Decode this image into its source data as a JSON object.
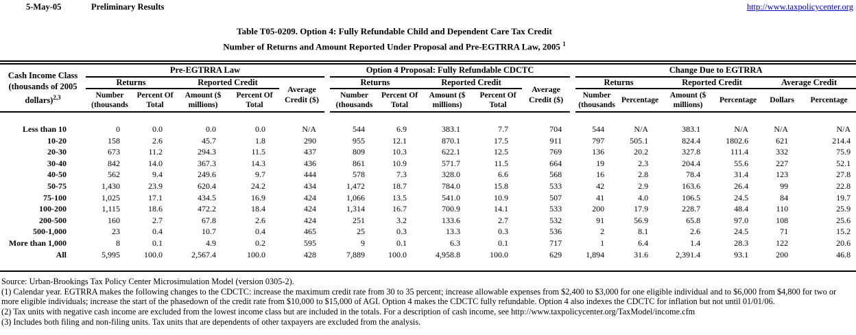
{
  "header": {
    "date": "5-May-05",
    "status": "Preliminary Results",
    "url": "http://www.taxpolicycenter.org"
  },
  "title": {
    "line1": "Table T05-0209. Option 4: Fully Refundable Child and Dependent Care Tax Credit",
    "line2": "Number of Returns and Amount Reported Under Proposal and Pre-EGTRRA Law, 2005 ",
    "superscript": "1"
  },
  "table": {
    "corner": {
      "line1": "Cash Income Class",
      "line2": "(thousands of 2005",
      "line3": "dollars)",
      "superscript": "2,3"
    },
    "groups": [
      "Pre-EGTRRA Law",
      "Option 4 Proposal: Fully Refundable CDCTC",
      "Change Due to EGTRRA"
    ],
    "sub": {
      "returns": "Returns",
      "reported": "Reported Credit",
      "avg_dollar": "Average\nCredit ($)",
      "avg": "Average Credit"
    },
    "cols": {
      "number": "Number\n(thousands",
      "pct_of_total": "Percent Of\nTotal",
      "amount": "Amount ($\nmillions)",
      "percentage": "Percentage",
      "dollars": "Dollars"
    },
    "rows": [
      {
        "label": "Less than 10",
        "values": [
          "0",
          "0.0",
          "0.0",
          "0.0",
          "N/A",
          "544",
          "6.9",
          "383.1",
          "7.7",
          "704",
          "544",
          "N/A",
          "383.1",
          "N/A",
          "N/A",
          "N/A"
        ]
      },
      {
        "label": "10-20",
        "values": [
          "158",
          "2.6",
          "45.7",
          "1.8",
          "290",
          "955",
          "12.1",
          "870.1",
          "17.5",
          "911",
          "797",
          "505.1",
          "824.4",
          "1802.6",
          "621",
          "214.4"
        ]
      },
      {
        "label": "20-30",
        "values": [
          "673",
          "11.2",
          "294.3",
          "11.5",
          "437",
          "809",
          "10.3",
          "622.1",
          "12.5",
          "769",
          "136",
          "20.2",
          "327.8",
          "111.4",
          "332",
          "75.9"
        ]
      },
      {
        "label": "30-40",
        "values": [
          "842",
          "14.0",
          "367.3",
          "14.3",
          "436",
          "861",
          "10.9",
          "571.7",
          "11.5",
          "664",
          "19",
          "2.3",
          "204.4",
          "55.6",
          "227",
          "52.1"
        ]
      },
      {
        "label": "40-50",
        "values": [
          "562",
          "9.4",
          "249.6",
          "9.7",
          "444",
          "578",
          "7.3",
          "328.0",
          "6.6",
          "568",
          "16",
          "2.8",
          "78.4",
          "31.4",
          "123",
          "27.8"
        ]
      },
      {
        "label": "50-75",
        "values": [
          "1,430",
          "23.9",
          "620.4",
          "24.2",
          "434",
          "1,472",
          "18.7",
          "784.0",
          "15.8",
          "533",
          "42",
          "2.9",
          "163.6",
          "26.4",
          "99",
          "22.8"
        ]
      },
      {
        "label": "75-100",
        "values": [
          "1,025",
          "17.1",
          "434.5",
          "16.9",
          "424",
          "1,066",
          "13.5",
          "541.0",
          "10.9",
          "507",
          "41",
          "4.0",
          "106.5",
          "24.5",
          "84",
          "19.7"
        ]
      },
      {
        "label": "100-200",
        "values": [
          "1,115",
          "18.6",
          "472.2",
          "18.4",
          "424",
          "1,314",
          "16.7",
          "700.9",
          "14.1",
          "533",
          "200",
          "17.9",
          "228.7",
          "48.4",
          "110",
          "25.9"
        ]
      },
      {
        "label": "200-500",
        "values": [
          "160",
          "2.7",
          "67.8",
          "2.6",
          "424",
          "251",
          "3.2",
          "133.6",
          "2.7",
          "532",
          "91",
          "56.9",
          "65.8",
          "97.0",
          "108",
          "25.6"
        ]
      },
      {
        "label": "500-1,000",
        "values": [
          "23",
          "0.4",
          "10.7",
          "0.4",
          "465",
          "25",
          "0.3",
          "13.3",
          "0.3",
          "536",
          "2",
          "8.1",
          "2.6",
          "24.5",
          "71",
          "15.2"
        ]
      },
      {
        "label": "More than 1,000",
        "values": [
          "8",
          "0.1",
          "4.9",
          "0.2",
          "595",
          "9",
          "0.1",
          "6.3",
          "0.1",
          "717",
          "1",
          "6.4",
          "1.4",
          "28.3",
          "122",
          "20.6"
        ]
      },
      {
        "label": "All",
        "values": [
          "5,995",
          "100.0",
          "2,567.4",
          "100.0",
          "428",
          "7,889",
          "100.0",
          "4,958.8",
          "100.0",
          "629",
          "1,894",
          "31.6",
          "2,391.4",
          "93.1",
          "200",
          "46.8"
        ]
      }
    ]
  },
  "footnotes": {
    "source": "Source: Urban-Brookings Tax Policy Center Microsimulation Model (version 0305-2).",
    "note1": "(1) Calendar year. EGTRRA makes the following changes to the CDCTC: increase the maximum credit rate from 30 to 35 percent; increase allowable expenses from $2,400 to $3,000 for one eligible individual and to $6,000 from $4,800 for two or more eligible individuals; increase the start of the phasedown of the credit rate from $10,000 to $15,000 of AGI.  Option 4 makes the CDCTC fully refundable.  Option 4 also indexes the CDCTC for inflation but not until 01/01/06.",
    "note2": "(2) Tax units with negative cash income are excluded from the lowest income class but are included in the totals. For a description of cash income, see http://www.taxpolicycenter.org/TaxModel/income.cfm",
    "note3": "(3) Includes both filing and non-filing units.  Tax units that are dependents of other taxpayers are excluded from the analysis."
  }
}
